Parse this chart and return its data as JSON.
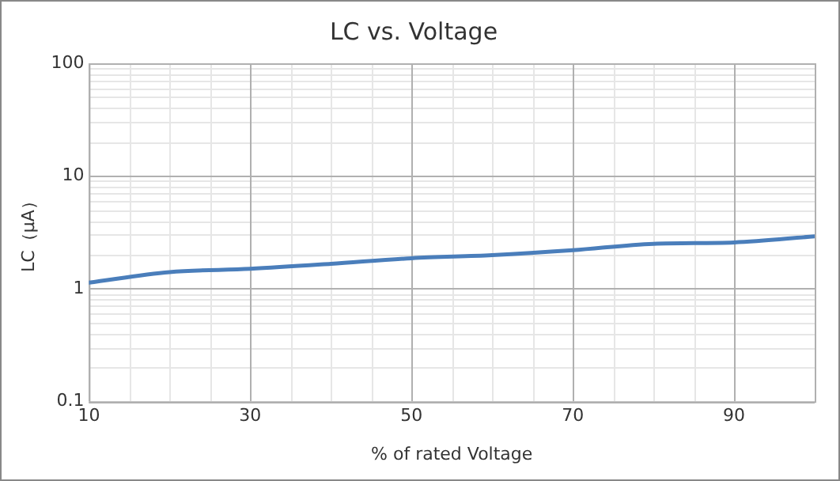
{
  "chart_data": {
    "type": "line",
    "title": "LC vs. Voltage",
    "xlabel": "% of rated Voltage",
    "ylabel": "LC（μA）",
    "x": [
      10,
      20,
      30,
      40,
      50,
      60,
      70,
      80,
      90,
      100
    ],
    "series": [
      {
        "color": "#4a7ebb",
        "values": [
          1.13,
          1.4,
          1.5,
          1.66,
          1.86,
          1.98,
          2.19,
          2.5,
          2.57,
          2.91
        ]
      }
    ],
    "xlim": [
      10,
      100
    ],
    "xticks": [
      10,
      30,
      50,
      70,
      90
    ],
    "ylim": [
      0.1,
      100
    ],
    "yticks": [
      0.1,
      1,
      10,
      100
    ],
    "log": "y",
    "grid": true,
    "legend": false,
    "marker": "none",
    "line_style": "solid"
  }
}
